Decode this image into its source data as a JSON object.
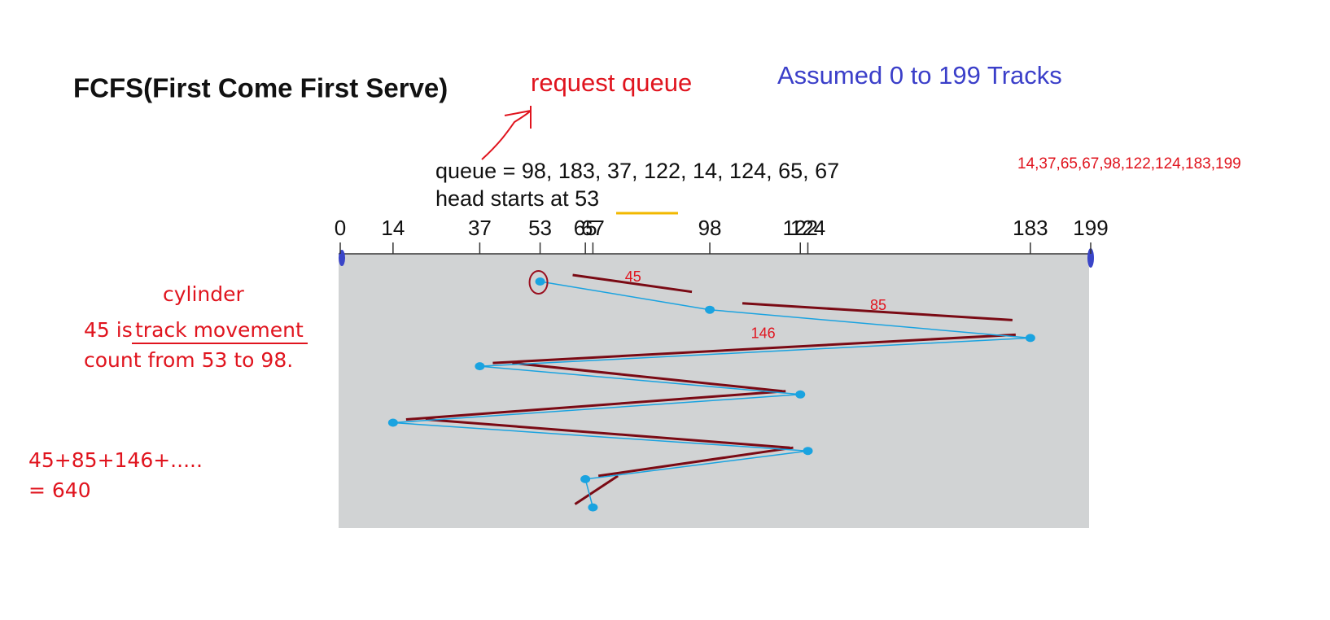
{
  "title": "FCFS(First Come First Serve)",
  "request_queue_label": "request queue",
  "assumption": "Assumed 0 to 199 Tracks",
  "sorted_queue": "14,37,65,67,98,122,124,183,199",
  "queue_text": "queue = 98, 183, 37, 122, 14, 124, 65, 67",
  "head_text": "head starts at 53",
  "axis": {
    "xlim": [
      0,
      199
    ],
    "xticks": [
      0,
      14,
      37,
      53,
      65,
      67,
      98,
      122,
      124,
      183,
      199
    ]
  },
  "path": [
    53,
    98,
    183,
    37,
    122,
    14,
    124,
    65,
    67
  ],
  "movements": [
    45,
    85,
    146
  ],
  "notes": {
    "cylinder": "cylinder",
    "line1_prefix": "45 is",
    "line1_underlined": "track movement",
    "line2": "count from 53 to 98.",
    "sum": "45+85+146+.....",
    "total": "= 640"
  }
}
